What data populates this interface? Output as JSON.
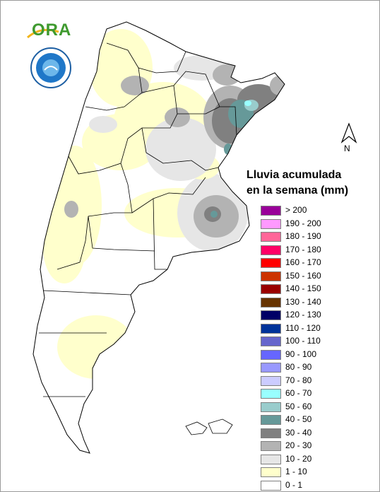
{
  "logo": {
    "text": "ORA"
  },
  "north_arrow": {
    "label": "N"
  },
  "legend": {
    "title_line1": "Lluvia acumulada",
    "title_line2": "en la semana (mm)",
    "classes": [
      {
        "label": "> 200",
        "color": "#990099"
      },
      {
        "label": "190 - 200",
        "color": "#ff99ff"
      },
      {
        "label": "180 - 190",
        "color": "#ff6699"
      },
      {
        "label": "170 - 180",
        "color": "#ff0066"
      },
      {
        "label": "160 - 170",
        "color": "#ff0000"
      },
      {
        "label": "150 - 160",
        "color": "#cc3300"
      },
      {
        "label": "140 - 150",
        "color": "#990000"
      },
      {
        "label": "130 - 140",
        "color": "#663300"
      },
      {
        "label": "120 - 130",
        "color": "#000066"
      },
      {
        "label": "110 - 120",
        "color": "#003399"
      },
      {
        "label": "100 - 110",
        "color": "#6666cc"
      },
      {
        "label": "90 - 100",
        "color": "#6666ff"
      },
      {
        "label": "80 - 90",
        "color": "#9999ff"
      },
      {
        "label": "70 - 80",
        "color": "#ccccff"
      },
      {
        "label": "60 - 70",
        "color": "#99ffff"
      },
      {
        "label": "50 - 60",
        "color": "#99cccc"
      },
      {
        "label": "40 - 50",
        "color": "#669999"
      },
      {
        "label": "30 - 40",
        "color": "#808080"
      },
      {
        "label": "20 - 30",
        "color": "#b3b3b3"
      },
      {
        "label": "10 - 20",
        "color": "#e6e6e6"
      },
      {
        "label": "1 - 10",
        "color": "#ffffcc"
      },
      {
        "label": "0 - 1",
        "color": "#ffffff"
      }
    ]
  }
}
